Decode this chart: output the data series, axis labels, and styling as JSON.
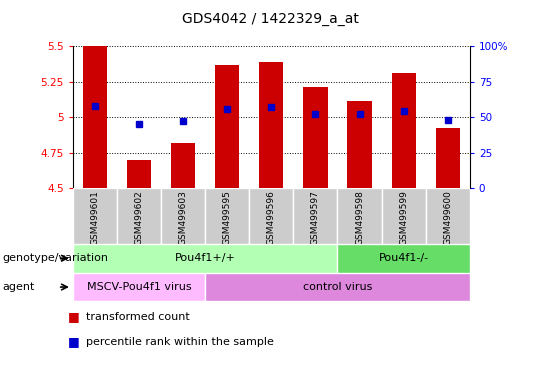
{
  "title": "GDS4042 / 1422329_a_at",
  "samples": [
    "GSM499601",
    "GSM499602",
    "GSM499603",
    "GSM499595",
    "GSM499596",
    "GSM499597",
    "GSM499598",
    "GSM499599",
    "GSM499600"
  ],
  "bar_values": [
    5.5,
    4.7,
    4.82,
    5.37,
    5.39,
    5.21,
    5.11,
    5.31,
    4.92
  ],
  "percentile_values": [
    5.08,
    4.95,
    4.97,
    5.06,
    5.07,
    5.02,
    5.02,
    5.04,
    4.98
  ],
  "ylim": [
    4.5,
    5.5
  ],
  "yticks": [
    4.5,
    4.75,
    5.0,
    5.25,
    5.5
  ],
  "ytick_labels": [
    "4.5",
    "4.75",
    "5",
    "5.25",
    "5.5"
  ],
  "right_yticks": [
    0,
    25,
    50,
    75,
    100
  ],
  "right_ytick_labels": [
    "0",
    "25",
    "50",
    "75",
    "100%"
  ],
  "bar_color": "#cc0000",
  "percentile_color": "#0000cc",
  "bar_width": 0.55,
  "genotype_groups": [
    {
      "label": "Pou4f1+/+",
      "start": 0,
      "end": 6,
      "color": "#b3ffb3"
    },
    {
      "label": "Pou4f1-/-",
      "start": 6,
      "end": 9,
      "color": "#66dd66"
    }
  ],
  "agent_groups": [
    {
      "label": "MSCV-Pou4f1 virus",
      "start": 0,
      "end": 3,
      "color": "#ffbbff"
    },
    {
      "label": "control virus",
      "start": 3,
      "end": 9,
      "color": "#dd88dd"
    }
  ],
  "legend_items": [
    {
      "label": "transformed count",
      "color": "#cc0000"
    },
    {
      "label": "percentile rank within the sample",
      "color": "#0000cc"
    }
  ],
  "row_label_genotype": "genotype/variation",
  "row_label_agent": "agent",
  "title_fontsize": 10,
  "tick_fontsize": 7.5,
  "label_fontsize": 7.5,
  "sample_fontsize": 6.5,
  "row_fontsize": 8,
  "legend_fontsize": 8,
  "sample_box_color": "#cccccc",
  "sample_box_edge": "#999999"
}
